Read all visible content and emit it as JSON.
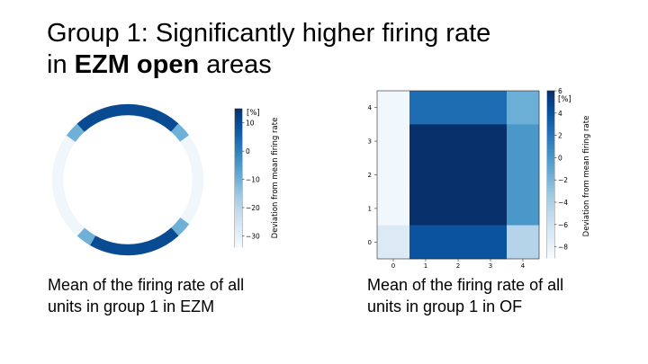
{
  "slide": {
    "title_line1": "Group 1: Significantly higher firing rate",
    "title_line2_pre": "in ",
    "title_line2_bold": "EZM open",
    "title_line2_post": " areas",
    "caption_left_line1": "Mean of the firing rate of all",
    "caption_left_line2": "units in group 1 in EZM",
    "caption_right_line1": "Mean of the firing rate of all",
    "caption_right_line2": "units in group 1 in OF"
  },
  "chart_data": [
    {
      "type": "heatmap",
      "shape": "ring",
      "colormap": "Blues",
      "segments_clockwise_from_top": [
        10,
        10,
        10,
        10,
        -10,
        -32,
        -32,
        -32,
        -32,
        -32,
        -32,
        -10,
        10,
        10,
        10,
        10,
        10,
        10,
        -10,
        -32,
        -32,
        -32,
        -32,
        -32,
        -32,
        -32,
        -10,
        10,
        10,
        10
      ],
      "colorbar": {
        "range": [
          -34,
          15
        ],
        "ticks": [
          10,
          0,
          -10,
          -20,
          -30
        ],
        "tick_labels": [
          "10",
          "0",
          "−10",
          "−20",
          "−30"
        ],
        "unit": "[%]",
        "label": "Deviation from mean firing rate"
      }
    },
    {
      "type": "heatmap",
      "colormap": "Blues",
      "x_ticks": [
        "0",
        "1",
        "2",
        "3",
        "4"
      ],
      "y_ticks": [
        "0",
        "1",
        "2",
        "3",
        "4"
      ],
      "matrix_rows_top_to_bottom": [
        [
          -8.5,
          2.5,
          2.5,
          2.5,
          -1.5
        ],
        [
          -8.5,
          6,
          6,
          6,
          0
        ],
        [
          -8.5,
          6,
          6,
          6,
          0
        ],
        [
          -8.5,
          6,
          6,
          6,
          0
        ],
        [
          -7,
          4,
          4,
          4,
          -4.5
        ]
      ],
      "colorbar": {
        "range": [
          -9,
          6
        ],
        "ticks": [
          6,
          4,
          2,
          0,
          -2,
          -4,
          -6,
          -8
        ],
        "tick_labels": [
          "6",
          "4",
          "2",
          "0",
          "−2",
          "−4",
          "−6",
          "−8"
        ],
        "unit": "[%]",
        "label": "Deviation from mean firing rate"
      }
    }
  ]
}
